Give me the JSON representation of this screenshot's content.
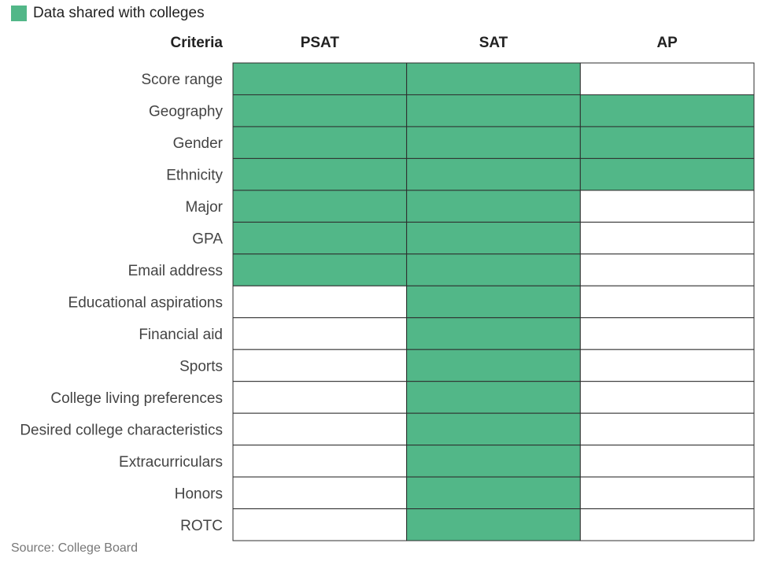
{
  "legend": {
    "label": "Data shared with colleges",
    "color": "#52b788"
  },
  "header": {
    "criteria_label": "Criteria"
  },
  "source": "Source: College Board",
  "chart_data": {
    "type": "table",
    "columns": [
      "PSAT",
      "SAT",
      "AP"
    ],
    "rows": [
      {
        "label": "Score range",
        "shared": [
          true,
          true,
          false
        ]
      },
      {
        "label": "Geography",
        "shared": [
          true,
          true,
          true
        ]
      },
      {
        "label": "Gender",
        "shared": [
          true,
          true,
          true
        ]
      },
      {
        "label": "Ethnicity",
        "shared": [
          true,
          true,
          true
        ]
      },
      {
        "label": "Major",
        "shared": [
          true,
          true,
          false
        ]
      },
      {
        "label": "GPA",
        "shared": [
          true,
          true,
          false
        ]
      },
      {
        "label": "Email address",
        "shared": [
          true,
          true,
          false
        ]
      },
      {
        "label": "Educational aspirations",
        "shared": [
          false,
          true,
          false
        ]
      },
      {
        "label": "Financial aid",
        "shared": [
          false,
          true,
          false
        ]
      },
      {
        "label": "Sports",
        "shared": [
          false,
          true,
          false
        ]
      },
      {
        "label": "College living preferences",
        "shared": [
          false,
          true,
          false
        ]
      },
      {
        "label": "Desired college characteristics",
        "shared": [
          false,
          true,
          false
        ]
      },
      {
        "label": "Extracurriculars",
        "shared": [
          false,
          true,
          false
        ]
      },
      {
        "label": "Honors",
        "shared": [
          false,
          true,
          false
        ]
      },
      {
        "label": "ROTC",
        "shared": [
          false,
          true,
          false
        ]
      }
    ],
    "colors": {
      "shared": "#52b788",
      "not_shared": "#ffffff",
      "border": "#2d2d2d"
    }
  }
}
